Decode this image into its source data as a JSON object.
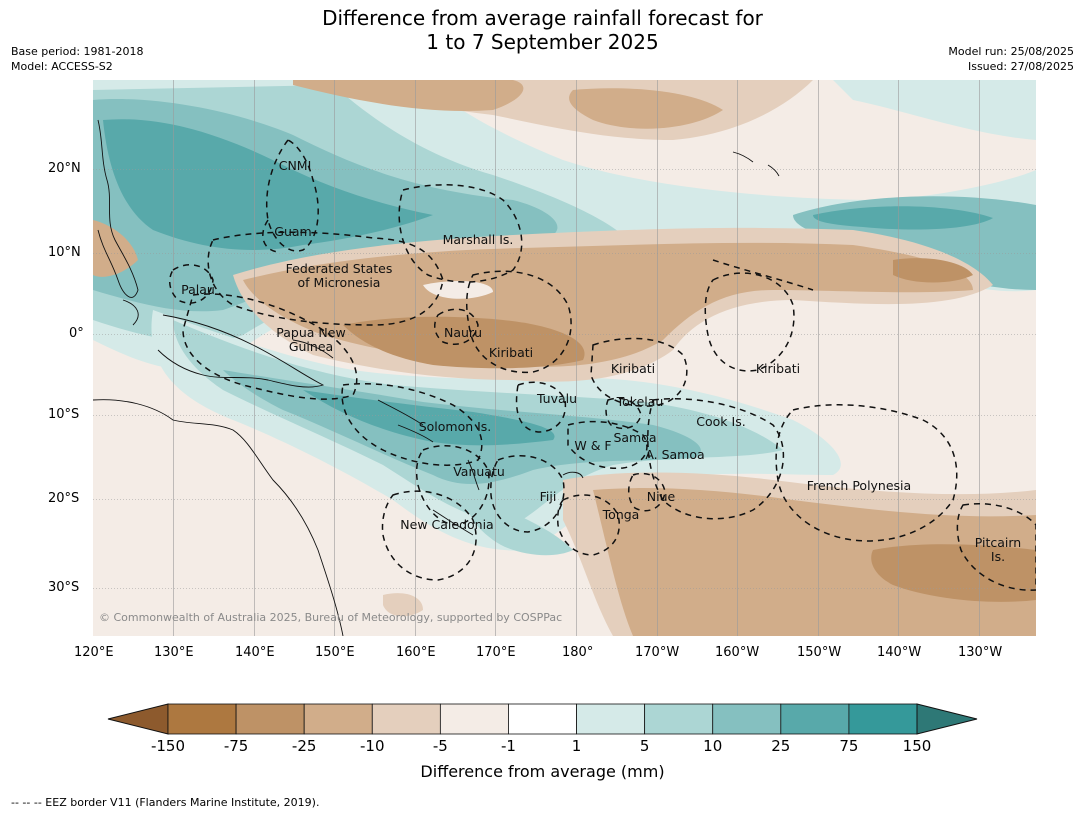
{
  "header": {
    "title_line1": "Difference from average rainfall forecast for",
    "title_line2": "1 to 7 September 2025",
    "base_period": "Base period: 1981-2018",
    "model": "Model: ACCESS-S2",
    "model_run": "Model run: 25/08/2025",
    "issued": "Issued: 27/08/2025"
  },
  "map": {
    "lat_labels": [
      "20°N",
      "10°N",
      "0°",
      "10°S",
      "20°S",
      "30°S"
    ],
    "lon_labels": [
      "120°E",
      "130°E",
      "140°E",
      "150°E",
      "160°E",
      "170°E",
      "180°",
      "170°W",
      "160°W",
      "150°W",
      "140°W",
      "130°W"
    ],
    "places": [
      {
        "name": "cnmi",
        "lines": [
          "CNMI"
        ]
      },
      {
        "name": "guam",
        "lines": [
          "Guam"
        ]
      },
      {
        "name": "marshall-islands",
        "lines": [
          "Marshall Is."
        ]
      },
      {
        "name": "federated-states-micronesia",
        "lines": [
          "Federated States",
          "of Micronesia"
        ]
      },
      {
        "name": "palau",
        "lines": [
          "Palau"
        ]
      },
      {
        "name": "papua-new-guinea",
        "lines": [
          "Papua New",
          "Guinea"
        ]
      },
      {
        "name": "nauru",
        "lines": [
          "Nauru"
        ]
      },
      {
        "name": "kiribati-west",
        "lines": [
          "Kiribati"
        ]
      },
      {
        "name": "kiribati-central",
        "lines": [
          "Kiribati"
        ]
      },
      {
        "name": "kiribati-east",
        "lines": [
          "Kiribati"
        ]
      },
      {
        "name": "tuvalu",
        "lines": [
          "Tuvalu"
        ]
      },
      {
        "name": "tokelau",
        "lines": [
          "Tokelau"
        ]
      },
      {
        "name": "cook-islands",
        "lines": [
          "Cook Is."
        ]
      },
      {
        "name": "solomon-islands",
        "lines": [
          "Solomon Is."
        ]
      },
      {
        "name": "samoa",
        "lines": [
          "Samoa"
        ]
      },
      {
        "name": "wallis-futuna",
        "lines": [
          "W & F"
        ]
      },
      {
        "name": "american-samoa",
        "lines": [
          "A. Samoa"
        ]
      },
      {
        "name": "vanuatu",
        "lines": [
          "Vanuatu"
        ]
      },
      {
        "name": "french-polynesia",
        "lines": [
          "French Polynesia"
        ]
      },
      {
        "name": "fiji",
        "lines": [
          "Fiji"
        ]
      },
      {
        "name": "niue",
        "lines": [
          "Niue"
        ]
      },
      {
        "name": "tonga",
        "lines": [
          "Tonga"
        ]
      },
      {
        "name": "new-caledonia",
        "lines": [
          "New Caledonia"
        ]
      },
      {
        "name": "pitcairn-islands",
        "lines": [
          "Pitcairn",
          "Is."
        ]
      }
    ],
    "copyright": "© Commonwealth of Australia 2025, Bureau of Meteorology, supported by COSPPac"
  },
  "colorbar": {
    "title": "Difference from average (mm)",
    "ticks": [
      "-150",
      "-75",
      "-25",
      "-10",
      "-5",
      "-1",
      "1",
      "5",
      "10",
      "25",
      "75",
      "150"
    ],
    "colors": {
      "below_min": "#8d5a2d",
      "bins": [
        "#ad7840",
        "#be9266",
        "#d1ad8a",
        "#e4cfbd",
        "#f4ece6",
        "#ffffff",
        "#d5eae8",
        "#acd6d4",
        "#85c0c0",
        "#58a9aa",
        "#35999a"
      ],
      "above_max": "#2e7876"
    }
  },
  "footer": {
    "eez_note": "--  --  -- EEZ border V11 (Flanders Marine Institute, 2019)."
  }
}
